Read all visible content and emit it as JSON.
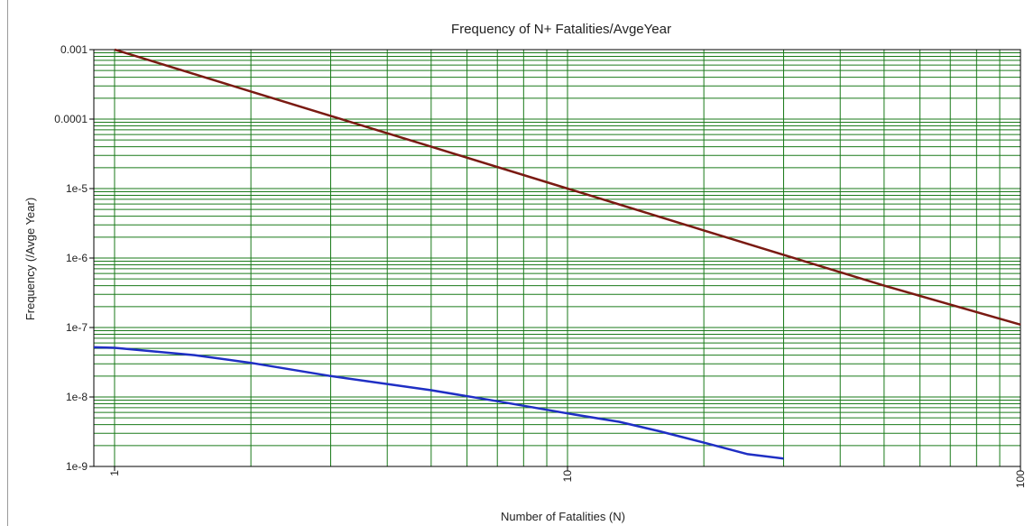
{
  "chart_data": {
    "type": "line",
    "title": "Frequency of N+ Fatalities/AvgeYear",
    "xlabel": "Number of Fatalities (N)",
    "ylabel": "Frequency (/Avge Year)",
    "x_scale": "log",
    "y_scale": "log",
    "xlim": [
      0.9,
      100
    ],
    "ylim": [
      1e-09,
      0.001
    ],
    "x_ticks": [
      {
        "value": 1,
        "label": "1"
      },
      {
        "value": 10,
        "label": "10"
      },
      {
        "value": 100,
        "label": "100"
      }
    ],
    "y_ticks": [
      {
        "value": 0.001,
        "label": "0.001"
      },
      {
        "value": 0.0001,
        "label": "0.0001"
      },
      {
        "value": 1e-05,
        "label": "1e-5"
      },
      {
        "value": 1e-06,
        "label": "1e-6"
      },
      {
        "value": 1e-07,
        "label": "1e-7"
      },
      {
        "value": 1e-08,
        "label": "1e-8"
      },
      {
        "value": 1e-09,
        "label": "1e-9"
      }
    ],
    "grid": true,
    "grid_color": "#1a7a1a",
    "series": [
      {
        "color": "#7a1a12",
        "x": [
          1,
          2,
          5,
          10,
          20,
          50,
          100
        ],
        "y": [
          0.001,
          0.00025,
          4e-05,
          1e-05,
          2.5e-06,
          4e-07,
          1.1e-07
        ]
      },
      {
        "color": "#1f2fc4",
        "x": [
          0.9,
          1,
          1.5,
          2,
          3,
          5,
          7,
          10,
          13,
          16,
          20,
          25,
          30
        ],
        "y": [
          5.2e-08,
          5.1e-08,
          4e-08,
          3.1e-08,
          2e-08,
          1.25e-08,
          8.7e-09,
          5.8e-09,
          4.4e-09,
          3.2e-09,
          2.2e-09,
          1.5e-09,
          1.3e-09
        ]
      }
    ]
  }
}
